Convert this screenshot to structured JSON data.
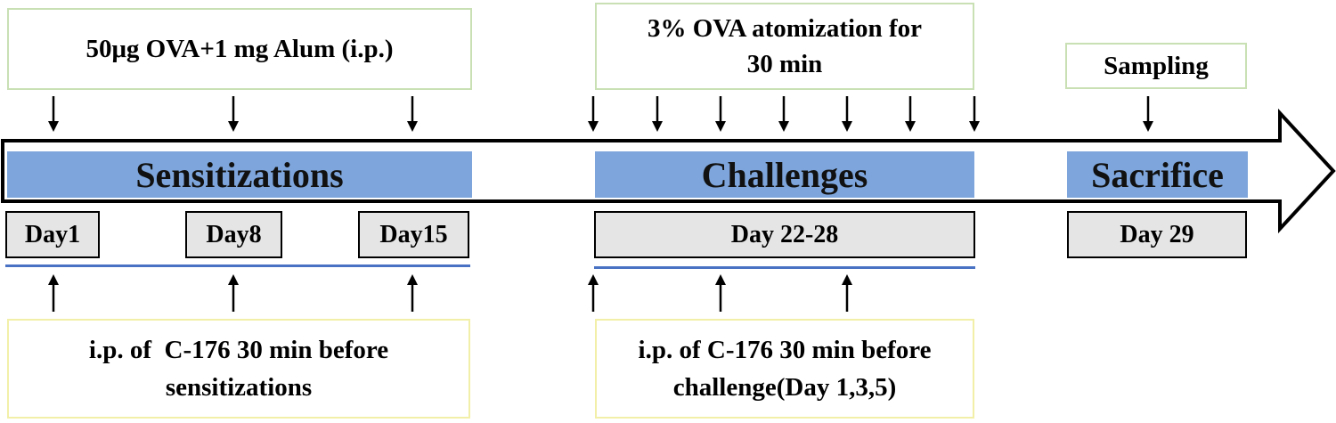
{
  "top_notes": {
    "sensitization_dose": "50μg OVA+1 mg Alum (i.p.)",
    "challenge_line1": "3% OVA atomization for",
    "challenge_line2": "30 min",
    "sampling": "Sampling"
  },
  "phases": {
    "sensitizations": "Sensitizations",
    "challenges": "Challenges",
    "sacrifice": "Sacrifice"
  },
  "days": {
    "day1": "Day1",
    "day8": "Day8",
    "day15": "Day15",
    "day22_28": "Day 22-28",
    "day29": "Day 29"
  },
  "bottom_notes": {
    "sens_line1": "i.p. of  C-176 30 min before",
    "sens_line2": "sensitizations",
    "chal_line1": "i.p. of C-176 30 min before",
    "chal_line2": "challenge(Day 1,3,5)"
  },
  "colors": {
    "phase_fill": "#7ea6dc",
    "day_fill": "#e5e5e5",
    "rule": "#4a72c4",
    "green_border": "#c9e0b4",
    "yellow_border": "#f2f0a8"
  }
}
